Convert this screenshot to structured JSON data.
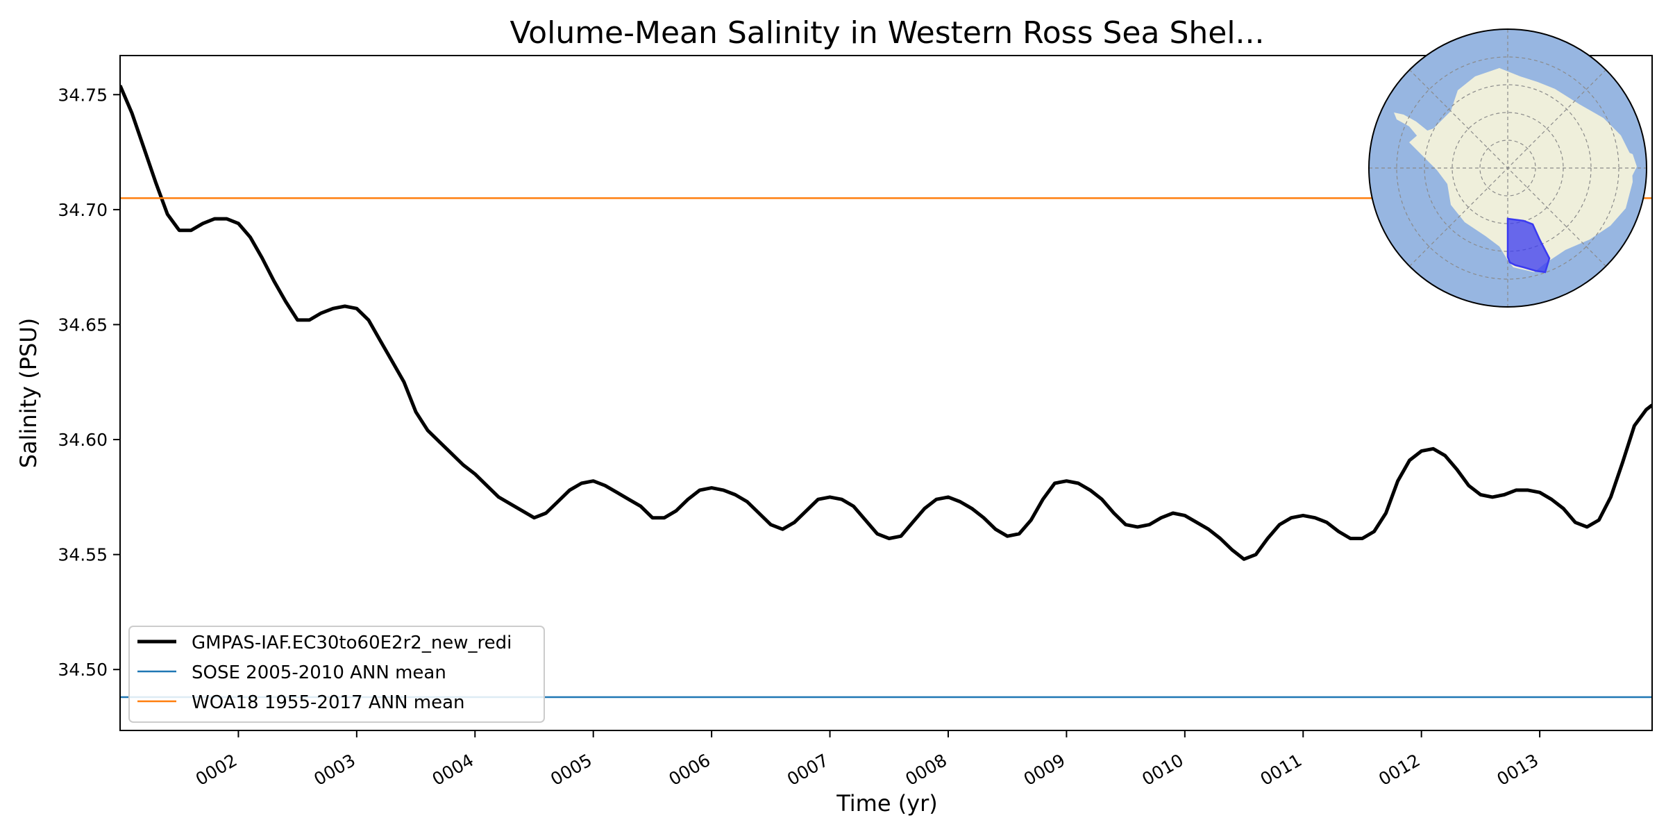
{
  "chart_data": {
    "type": "line",
    "title": "Volume-Mean Salinity in Western Ross Sea Shel...",
    "xlabel": "Time (yr)",
    "ylabel": "Salinity (PSU)",
    "xlim": [
      1.0,
      13.95
    ],
    "ylim": [
      34.4735,
      34.767
    ],
    "grid": false,
    "legend_position": "lower-left",
    "x_ticks": [
      2,
      3,
      4,
      5,
      6,
      7,
      8,
      9,
      10,
      11,
      12,
      13
    ],
    "x_tick_labels": [
      "0002",
      "0003",
      "0004",
      "0005",
      "0006",
      "0007",
      "0008",
      "0009",
      "0010",
      "0011",
      "0012",
      "0013"
    ],
    "y_ticks": [
      34.5,
      34.55,
      34.6,
      34.65,
      34.7,
      34.75
    ],
    "y_tick_labels": [
      "34.50",
      "34.55",
      "34.60",
      "34.65",
      "34.70",
      "34.75"
    ],
    "series": [
      {
        "name": "GMPAS-IAF.EC30to60E2r2_new_redi",
        "color": "#000000",
        "style": "thick",
        "x": [
          1.0,
          1.1,
          1.2,
          1.3,
          1.4,
          1.5,
          1.6,
          1.7,
          1.8,
          1.9,
          2.0,
          2.1,
          2.2,
          2.3,
          2.4,
          2.5,
          2.6,
          2.7,
          2.8,
          2.9,
          3.0,
          3.1,
          3.2,
          3.3,
          3.4,
          3.5,
          3.6,
          3.7,
          3.8,
          3.9,
          4.0,
          4.1,
          4.2,
          4.3,
          4.4,
          4.5,
          4.6,
          4.7,
          4.8,
          4.9,
          5.0,
          5.1,
          5.2,
          5.3,
          5.4,
          5.5,
          5.6,
          5.7,
          5.8,
          5.9,
          6.0,
          6.1,
          6.2,
          6.3,
          6.4,
          6.5,
          6.6,
          6.7,
          6.8,
          6.9,
          7.0,
          7.1,
          7.2,
          7.3,
          7.4,
          7.5,
          7.6,
          7.7,
          7.8,
          7.9,
          8.0,
          8.1,
          8.2,
          8.3,
          8.4,
          8.5,
          8.6,
          8.7,
          8.8,
          8.9,
          9.0,
          9.1,
          9.2,
          9.3,
          9.4,
          9.5,
          9.6,
          9.7,
          9.8,
          9.9,
          10.0,
          10.1,
          10.2,
          10.3,
          10.4,
          10.5,
          10.6,
          10.7,
          10.8,
          10.9,
          11.0,
          11.1,
          11.2,
          11.3,
          11.4,
          11.5,
          11.6,
          11.7,
          11.8,
          11.9,
          12.0,
          12.1,
          12.2,
          12.3,
          12.4,
          12.5,
          12.6,
          12.7,
          12.8,
          12.9,
          13.0,
          13.1,
          13.2,
          13.3,
          13.4,
          13.5,
          13.6,
          13.7,
          13.8,
          13.9,
          13.95
        ],
        "values": [
          34.754,
          34.742,
          34.727,
          34.712,
          34.698,
          34.691,
          34.691,
          34.694,
          34.696,
          34.696,
          34.694,
          34.688,
          34.679,
          34.669,
          34.66,
          34.652,
          34.652,
          34.655,
          34.657,
          34.658,
          34.657,
          34.652,
          34.643,
          34.634,
          34.625,
          34.612,
          34.604,
          34.599,
          34.594,
          34.589,
          34.585,
          34.58,
          34.575,
          34.572,
          34.569,
          34.566,
          34.568,
          34.573,
          34.578,
          34.581,
          34.582,
          34.58,
          34.577,
          34.574,
          34.571,
          34.566,
          34.566,
          34.569,
          34.574,
          34.578,
          34.579,
          34.578,
          34.576,
          34.573,
          34.568,
          34.563,
          34.561,
          34.564,
          34.569,
          34.574,
          34.575,
          34.574,
          34.571,
          34.565,
          34.559,
          34.557,
          34.558,
          34.564,
          34.57,
          34.574,
          34.575,
          34.573,
          34.57,
          34.566,
          34.561,
          34.558,
          34.559,
          34.565,
          34.574,
          34.581,
          34.582,
          34.581,
          34.578,
          34.574,
          34.568,
          34.563,
          34.562,
          34.563,
          34.566,
          34.568,
          34.567,
          34.564,
          34.561,
          34.557,
          34.552,
          34.548,
          34.55,
          34.557,
          34.563,
          34.566,
          34.567,
          34.566,
          34.564,
          34.56,
          34.557,
          34.557,
          34.56,
          34.568,
          34.582,
          34.591,
          34.595,
          34.596,
          34.593,
          34.587,
          34.58,
          34.576,
          34.575,
          34.576,
          34.578,
          34.578,
          34.577,
          34.574,
          34.57,
          34.564,
          34.562,
          34.565,
          34.575,
          34.59,
          34.606,
          34.613,
          34.615
        ]
      },
      {
        "name": "SOSE 2005-2010 ANN mean",
        "color": "#1f77b4",
        "style": "thin",
        "constant": 34.488
      },
      {
        "name": "WOA18 1955-2017 ANN mean",
        "color": "#ff7f0e",
        "style": "thin",
        "constant": 34.705
      }
    ]
  },
  "inset_map": {
    "colors": {
      "ocean": "#97b6e1",
      "land": "#efefdb",
      "region": "#3a3af0"
    }
  }
}
